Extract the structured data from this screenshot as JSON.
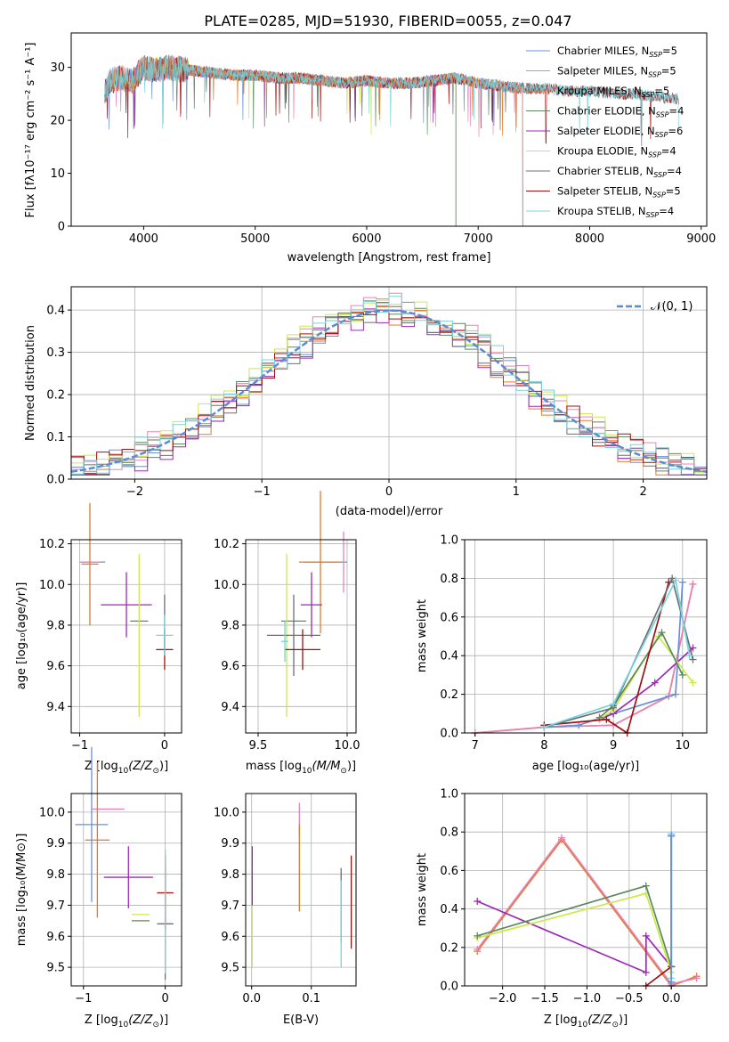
{
  "figure": {
    "title": "PLATE=0285, MJD=51930, FIBERID=0055, z=0.047",
    "colors": {
      "Chabrier MILES": "#6a8fd8",
      "Salpeter MILES": "#e882b8",
      "Kroupa MILES": "#e07b2c",
      "Chabrier ELODIE": "#5b8a5e",
      "Salpeter ELODIE": "#9b2ab5",
      "Kroupa ELODIE": "#cde84a",
      "Chabrier STELIB": "#6e6e6e",
      "Salpeter STELIB": "#a01010",
      "Kroupa STELIB": "#77d3dc",
      "gaussian": "#5b8bd4"
    }
  },
  "chart_data": [
    {
      "id": "spectrum",
      "type": "line",
      "xlabel": "wavelength [Angstrom, rest frame]",
      "ylabel": "Flux [fλ10⁻¹⁷ erg cm⁻² s⁻¹ A⁻¹]",
      "xlim": [
        3350,
        9050
      ],
      "ylim": [
        0,
        36.5
      ],
      "xticks": [
        4000,
        5000,
        6000,
        7000,
        8000,
        9000
      ],
      "yticks": [
        0,
        10,
        20,
        30
      ],
      "legend_position": "top-right",
      "legend": [
        {
          "series": "Chabrier MILES",
          "base": "Chabrier MILES, N",
          "sub": "SSP",
          "tail": "=5"
        },
        {
          "series": "Salpeter MILES",
          "base": "Salpeter MILES, N",
          "sub": "SSP",
          "tail": "=5"
        },
        {
          "series": "Kroupa MILES",
          "base": "Kroupa MILES, N",
          "sub": "SSP",
          "tail": "=5"
        },
        {
          "series": "Chabrier ELODIE",
          "base": "Chabrier ELODIE, N",
          "sub": "SSP",
          "tail": "=4"
        },
        {
          "series": "Salpeter ELODIE",
          "base": "Salpeter ELODIE, N",
          "sub": "SSP",
          "tail": "=6"
        },
        {
          "series": "Kroupa ELODIE",
          "base": "Kroupa ELODIE, N",
          "sub": "SSP",
          "tail": "=4"
        },
        {
          "series": "Chabrier STELIB",
          "base": "Chabrier STELIB, N",
          "sub": "SSP",
          "tail": "=4"
        },
        {
          "series": "Salpeter STELIB",
          "base": "Salpeter STELIB, N",
          "sub": "SSP",
          "tail": "=5"
        },
        {
          "series": "Kroupa STELIB",
          "base": "Kroupa STELIB, N",
          "sub": "SSP",
          "tail": "=4"
        }
      ],
      "data_points": {
        "x": [
          3650,
          3700,
          3800,
          3900,
          4000,
          4100,
          4200,
          4400,
          4600,
          4800,
          5000,
          5200,
          5400,
          5600,
          5800,
          6000,
          6200,
          6400,
          6600,
          6800,
          7000,
          7200,
          7400,
          7600,
          7800,
          8000,
          8200,
          8400,
          8600,
          8800
        ],
        "y": [
          25.0,
          27.5,
          28.0,
          27.5,
          30.0,
          29.5,
          30.0,
          29.5,
          29.0,
          28.5,
          28.5,
          28.0,
          28.0,
          27.5,
          27.0,
          27.5,
          27.0,
          27.0,
          27.5,
          28.0,
          27.0,
          26.5,
          26.0,
          26.0,
          25.5,
          25.5,
          25.0,
          25.0,
          24.5,
          24.0
        ]
      },
      "model_ranges": {
        "Chabrier MILES": [
          3650,
          7400
        ],
        "Salpeter MILES": [
          3650,
          7400
        ],
        "Kroupa MILES": [
          3650,
          7400
        ],
        "Chabrier ELODIE": [
          3900,
          6800
        ],
        "Salpeter ELODIE": [
          3900,
          6800
        ],
        "Kroupa ELODIE": [
          3900,
          6800
        ],
        "Chabrier STELIB": [
          3650,
          8800
        ],
        "Salpeter STELIB": [
          3650,
          8800
        ],
        "Kroupa STELIB": [
          3650,
          8800
        ]
      }
    },
    {
      "id": "residuals",
      "type": "line",
      "xlabel": "(data-model)/error",
      "ylabel": "Normed distribution",
      "xlim": [
        -2.5,
        2.5
      ],
      "ylim": [
        0,
        0.455
      ],
      "xticks": [
        -2,
        -1,
        0,
        1,
        2
      ],
      "yticks": [
        0.0,
        0.1,
        0.2,
        0.3,
        0.4
      ],
      "legend_position": "top-right",
      "gaussian_label": "𝒩(0, 1)",
      "bin_width": 0.1,
      "series": [
        {
          "name": "Chabrier MILES",
          "offset": 0.0
        },
        {
          "name": "Salpeter MILES",
          "offset": 0.012
        },
        {
          "name": "Kroupa MILES",
          "offset": -0.01
        },
        {
          "name": "Chabrier ELODIE",
          "offset": 0.008
        },
        {
          "name": "Salpeter ELODIE",
          "offset": -0.015
        },
        {
          "name": "Kroupa ELODIE",
          "offset": 0.015
        },
        {
          "name": "Chabrier STELIB",
          "offset": -0.005
        },
        {
          "name": "Salpeter STELIB",
          "offset": 0.005
        },
        {
          "name": "Kroupa STELIB",
          "offset": 0.01
        }
      ]
    },
    {
      "id": "age-vs-Z",
      "type": "scatter",
      "xlabel_base": "Z [log",
      "xlabel_sub": "10",
      "xlabel_tail": "(Z/Z",
      "xlabel_sym": "⊙",
      "xlabel_end": ")]",
      "ylabel": "age  [log₁₀(age/yr)]",
      "xlim": [
        -1.1,
        0.2
      ],
      "ylim": [
        9.27,
        10.22
      ],
      "xticks": [
        -1,
        0
      ],
      "yticks": [
        9.4,
        9.6,
        9.8,
        10.0,
        10.2
      ],
      "points": [
        {
          "series": "Chabrier MILES",
          "x": -0.85,
          "xerr": 0.15,
          "y": 10.11,
          "yerr": 0.0
        },
        {
          "series": "Salpeter MILES",
          "x": -0.88,
          "xerr": 0.12,
          "y": 10.11,
          "yerr": 0.0
        },
        {
          "series": "Kroupa MILES",
          "x": -0.88,
          "xerr": 0.1,
          "y": 10.1,
          "yerr": 0.3
        },
        {
          "series": "Chabrier ELODIE",
          "x": -0.3,
          "xerr": 0.0,
          "y": 9.82,
          "yerr": 0.0
        },
        {
          "series": "Salpeter ELODIE",
          "x": -0.45,
          "xerr": 0.3,
          "y": 9.9,
          "yerr": 0.16
        },
        {
          "series": "Kroupa ELODIE",
          "x": -0.3,
          "xerr": 0.0,
          "y": 9.75,
          "yerr": 0.4
        },
        {
          "series": "Chabrier STELIB",
          "x": 0.0,
          "xerr": 0.0,
          "y": 9.8,
          "yerr": 0.15
        },
        {
          "series": "Salpeter STELIB",
          "x": 0.0,
          "xerr": 0.1,
          "y": 9.68,
          "yerr": 0.1
        },
        {
          "series": "Kroupa STELIB",
          "x": 0.0,
          "xerr": 0.1,
          "y": 9.75,
          "yerr": 0.1
        }
      ]
    },
    {
      "id": "age-vs-mass",
      "type": "scatter",
      "xlabel_base": "mass [log",
      "xlabel_sub": "10",
      "xlabel_tail": "(M/M",
      "xlabel_sym": "⊙",
      "xlabel_end": ")]",
      "xlim": [
        9.43,
        10.05
      ],
      "ylim": [
        9.27,
        10.22
      ],
      "xticks": [
        9.5,
        10.0
      ],
      "yticks": [
        9.4,
        9.6,
        9.8,
        10.0,
        10.2
      ],
      "points": [
        {
          "series": "Chabrier MILES",
          "x": 9.88,
          "xerr": 0.12,
          "y": 10.11,
          "yerr": 0.0
        },
        {
          "series": "Salpeter MILES",
          "x": 9.98,
          "xerr": 0.0,
          "y": 10.11,
          "yerr": 0.15
        },
        {
          "series": "Kroupa MILES",
          "x": 9.85,
          "xerr": 0.12,
          "y": 10.11,
          "yerr": 0.35
        },
        {
          "series": "Chabrier ELODIE",
          "x": 9.7,
          "xerr": 0.07,
          "y": 9.82,
          "yerr": 0.0
        },
        {
          "series": "Salpeter ELODIE",
          "x": 9.8,
          "xerr": 0.06,
          "y": 9.9,
          "yerr": 0.16
        },
        {
          "series": "Kroupa ELODIE",
          "x": 9.66,
          "xerr": 0.0,
          "y": 9.75,
          "yerr": 0.4
        },
        {
          "series": "Chabrier STELIB",
          "x": 9.7,
          "xerr": 0.15,
          "y": 9.75,
          "yerr": 0.2
        },
        {
          "series": "Salpeter STELIB",
          "x": 9.75,
          "xerr": 0.1,
          "y": 9.68,
          "yerr": 0.1
        },
        {
          "series": "Kroupa STELIB",
          "x": 9.65,
          "xerr": 0.02,
          "y": 9.72,
          "yerr": 0.1
        }
      ]
    },
    {
      "id": "weight-vs-age",
      "type": "line",
      "xlabel": "age  [log₁₀(age/yr)]",
      "ylabel": "mass weight",
      "xlim": [
        6.85,
        10.35
      ],
      "ylim": [
        0,
        1.0
      ],
      "xticks": [
        7,
        8,
        9,
        10
      ],
      "yticks": [
        0.0,
        0.2,
        0.4,
        0.6,
        0.8,
        1.0
      ],
      "series": [
        {
          "name": "Kroupa MILES",
          "x": [
            7.0,
            8.0,
            9.0,
            9.8,
            10.15
          ],
          "y": [
            0.0,
            0.03,
            0.04,
            0.19,
            0.77
          ]
        },
        {
          "name": "Salpeter MILES",
          "x": [
            7.0,
            8.0,
            9.0,
            9.8,
            10.15
          ],
          "y": [
            0.0,
            0.03,
            0.04,
            0.19,
            0.77
          ]
        },
        {
          "name": "Chabrier MILES",
          "x": [
            8.0,
            8.5,
            9.0,
            9.9,
            10.0
          ],
          "y": [
            0.03,
            0.04,
            0.1,
            0.2,
            0.78
          ]
        },
        {
          "name": "Salpeter ELODIE",
          "x": [
            8.8,
            9.0,
            9.6,
            10.15
          ],
          "y": [
            0.07,
            0.1,
            0.26,
            0.44
          ]
        },
        {
          "name": "Kroupa ELODIE",
          "x": [
            8.8,
            9.0,
            9.65,
            10.15
          ],
          "y": [
            0.07,
            0.12,
            0.5,
            0.26
          ]
        },
        {
          "name": "Chabrier ELODIE",
          "x": [
            8.8,
            9.0,
            9.7,
            10.0
          ],
          "y": [
            0.08,
            0.14,
            0.52,
            0.3
          ]
        },
        {
          "name": "Salpeter STELIB",
          "x": [
            8.0,
            8.9,
            9.2,
            9.8
          ],
          "y": [
            0.04,
            0.07,
            0.0,
            0.78
          ]
        },
        {
          "name": "Chabrier STELIB",
          "x": [
            8.0,
            9.0,
            9.85,
            10.15
          ],
          "y": [
            0.03,
            0.13,
            0.8,
            0.38
          ]
        },
        {
          "name": "Kroupa STELIB",
          "x": [
            8.0,
            9.0,
            9.9,
            10.1
          ],
          "y": [
            0.03,
            0.15,
            0.79,
            0.4
          ]
        }
      ]
    },
    {
      "id": "mass-vs-Z",
      "type": "scatter",
      "xlabel_base": "Z [log",
      "xlabel_sub": "10",
      "xlabel_tail": "(Z/Z",
      "xlabel_sym": "⊙",
      "xlabel_end": ")]",
      "ylabel": "mass [log₁₀(M/M⊙)]",
      "xlim": [
        -1.15,
        0.2
      ],
      "ylim": [
        9.44,
        10.06
      ],
      "xticks": [
        -1,
        0
      ],
      "yticks": [
        9.5,
        9.6,
        9.7,
        9.8,
        9.9,
        10.0
      ],
      "points": [
        {
          "series": "Chabrier MILES",
          "x": -0.9,
          "xerr": 0.2,
          "y": 9.96,
          "yerr": 0.25
        },
        {
          "series": "Salpeter MILES",
          "x": -0.7,
          "xerr": 0.2,
          "y": 10.01,
          "yerr": 0.0
        },
        {
          "series": "Kroupa MILES",
          "x": -0.83,
          "xerr": 0.15,
          "y": 9.91,
          "yerr": 0.25
        },
        {
          "series": "Chabrier ELODIE",
          "x": -0.3,
          "xerr": 0.0,
          "y": 9.65,
          "yerr": 0.0
        },
        {
          "series": "Salpeter ELODIE",
          "x": -0.45,
          "xerr": 0.3,
          "y": 9.79,
          "yerr": 0.1
        },
        {
          "series": "Kroupa ELODIE",
          "x": -0.3,
          "xerr": 0.0,
          "y": 9.67,
          "yerr": 0.0
        },
        {
          "series": "Chabrier STELIB",
          "x": 0.0,
          "xerr": 0.1,
          "y": 9.64,
          "yerr": 0.18
        },
        {
          "series": "Salpeter STELIB",
          "x": 0.0,
          "xerr": 0.1,
          "y": 9.74,
          "yerr": 0.12
        },
        {
          "series": "Kroupa STELIB",
          "x": 0.0,
          "xerr": 0.0,
          "y": 9.68,
          "yerr": 0.2
        }
      ]
    },
    {
      "id": "mass-vs-EBV",
      "type": "scatter",
      "xlabel": "E(B-V)",
      "xlim": [
        -0.01,
        0.175
      ],
      "ylim": [
        9.44,
        10.06
      ],
      "xticks": [
        0.0,
        0.1
      ],
      "yticks": [
        9.5,
        9.6,
        9.7,
        9.8,
        9.9,
        10.0
      ],
      "points": [
        {
          "series": "Salpeter ELODIE",
          "x": 0.001,
          "xerr": 0.0,
          "y": 9.79,
          "yerr": 0.1
        },
        {
          "series": "Kroupa ELODIE",
          "x": 0.001,
          "xerr": 0.0,
          "y": 9.6,
          "yerr": 0.1
        },
        {
          "series": "Salpeter MILES",
          "x": 0.08,
          "xerr": 0.0,
          "y": 9.98,
          "yerr": 0.05
        },
        {
          "series": "Kroupa MILES",
          "x": 0.08,
          "xerr": 0.0,
          "y": 9.82,
          "yerr": 0.14
        },
        {
          "series": "Chabrier STELIB",
          "x": 0.15,
          "xerr": 0.0,
          "y": 9.7,
          "yerr": 0.12
        },
        {
          "series": "Kroupa STELIB",
          "x": 0.15,
          "xerr": 0.0,
          "y": 9.64,
          "yerr": 0.14
        },
        {
          "series": "Salpeter STELIB",
          "x": 0.167,
          "xerr": 0.0,
          "y": 9.71,
          "yerr": 0.15
        }
      ]
    },
    {
      "id": "weight-vs-Z",
      "type": "line",
      "xlabel_base": "Z [log",
      "xlabel_sub": "10",
      "xlabel_tail": "(Z/Z",
      "xlabel_sym": "⊙",
      "xlabel_end": ")]",
      "ylabel": "mass weight",
      "xlim": [
        -2.45,
        0.42
      ],
      "ylim": [
        0,
        1.0
      ],
      "xticks": [
        -2.0,
        -1.5,
        -1.0,
        -0.5,
        0.0
      ],
      "yticks": [
        0.0,
        0.2,
        0.4,
        0.6,
        0.8,
        1.0
      ],
      "series": [
        {
          "name": "Kroupa MILES",
          "x": [
            -2.3,
            -1.3,
            0.0,
            0.3
          ],
          "y": [
            0.18,
            0.76,
            0.0,
            0.05
          ]
        },
        {
          "name": "Salpeter MILES",
          "x": [
            -2.3,
            -1.3,
            0.0,
            0.3
          ],
          "y": [
            0.19,
            0.77,
            0.01,
            0.04
          ]
        },
        {
          "name": "Salpeter ELODIE",
          "x": [
            -2.3,
            -0.3,
            -0.3,
            0.0
          ],
          "y": [
            0.44,
            0.07,
            0.26,
            0.1
          ]
        },
        {
          "name": "Kroupa ELODIE",
          "x": [
            -2.3,
            -0.3,
            0.0
          ],
          "y": [
            0.25,
            0.48,
            0.07
          ]
        },
        {
          "name": "Chabrier ELODIE",
          "x": [
            -2.3,
            -0.3,
            0.0
          ],
          "y": [
            0.26,
            0.52,
            0.1
          ]
        },
        {
          "name": "Salpeter STELIB",
          "x": [
            -0.3,
            0.0,
            0.0
          ],
          "y": [
            0.0,
            0.1,
            0.78
          ]
        },
        {
          "name": "Chabrier STELIB",
          "x": [
            0.0,
            0.0,
            0.0
          ],
          "y": [
            0.78,
            0.1,
            0.0
          ]
        },
        {
          "name": "Kroupa STELIB",
          "x": [
            0.0,
            0.0
          ],
          "y": [
            0.79,
            0.04
          ]
        },
        {
          "name": "Chabrier MILES",
          "x": [
            0.0,
            0.0
          ],
          "y": [
            0.78,
            0.02
          ]
        }
      ]
    }
  ]
}
